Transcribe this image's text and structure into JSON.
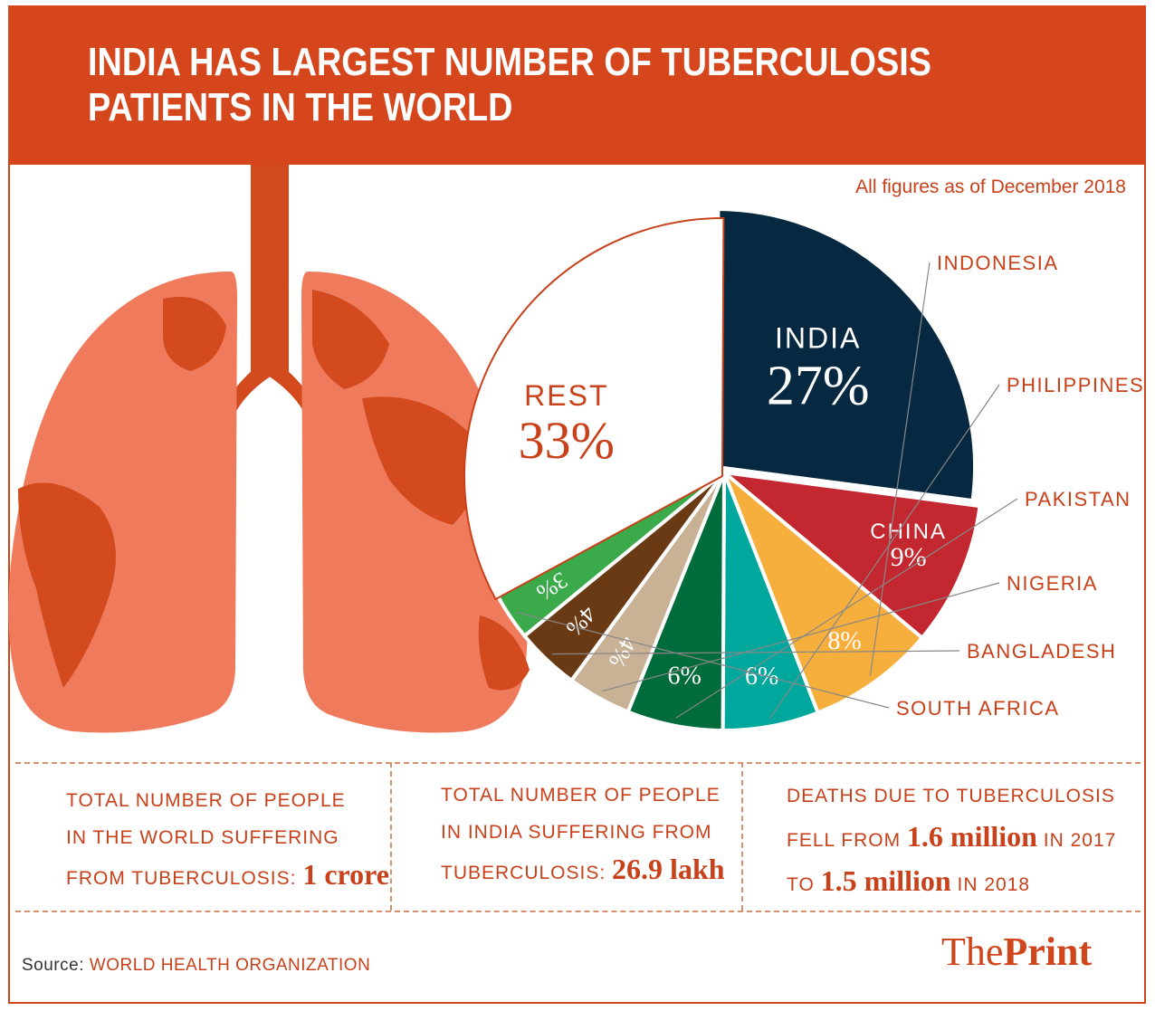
{
  "title": "INDIA HAS LARGEST NUMBER OF TUBERCULOSIS PATIENTS IN THE WORLD",
  "note": "All figures as of December 2018",
  "chart_data": {
    "type": "pie",
    "slices": [
      {
        "label": "INDIA",
        "value": 27,
        "pct_label": "27%",
        "color": "#062840"
      },
      {
        "label": "CHINA",
        "value": 9,
        "pct_label": "9%",
        "color": "#c3272f"
      },
      {
        "label": "INDONESIA",
        "value": 8,
        "pct_label": "8%",
        "color": "#f6af3d"
      },
      {
        "label": "PHILIPPINES",
        "value": 6,
        "pct_label": "6%",
        "color": "#00a79d"
      },
      {
        "label": "PAKISTAN",
        "value": 6,
        "pct_label": "6%",
        "color": "#006b3b"
      },
      {
        "label": "NIGERIA",
        "value": 4,
        "pct_label": "4%",
        "color": "#c9b195"
      },
      {
        "label": "BANGLADESH",
        "value": 4,
        "pct_label": "4%",
        "color": "#6a3a14"
      },
      {
        "label": "SOUTH AFRICA",
        "value": 3,
        "pct_label": "3%",
        "color": "#3aaa4a"
      },
      {
        "label": "REST",
        "value": 33,
        "pct_label": "33%",
        "color": "#ffffff"
      }
    ]
  },
  "stats": [
    {
      "lines": [
        "TOTAL NUMBER OF PEOPLE",
        "IN THE WORLD SUFFERING"
      ],
      "prefix": "FROM TUBERCULOSIS:",
      "value": "1 crore"
    },
    {
      "lines": [
        "TOTAL NUMBER OF PEOPLE",
        "IN INDIA SUFFERING FROM"
      ],
      "prefix": "TUBERCULOSIS:",
      "value": "26.9 lakh"
    },
    {
      "line1": "DEATHS DUE TO TUBERCULOSIS",
      "fell_from": "FELL FROM",
      "value_a": "1.6 million",
      "in_a": "IN 2017",
      "to": "TO",
      "value_b": "1.5 million",
      "in_b": "IN 2018"
    }
  ],
  "source_label": "Source:",
  "source_value": "WORLD HEALTH ORGANIZATION",
  "logo": {
    "part1": "The",
    "part2": "Print"
  },
  "colors": {
    "banner": "#d5461c",
    "lung_light": "#ef7a5c",
    "lung_dark": "#d24a1e",
    "text_accent": "#c8411a"
  }
}
